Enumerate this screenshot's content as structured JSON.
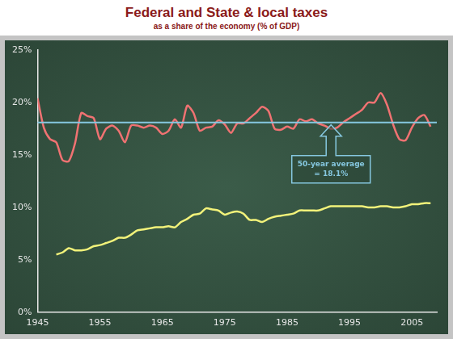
{
  "chart_data": {
    "type": "line",
    "title": "Federal and State & local taxes",
    "subtitle": "as a share of the economy (% of GDP)",
    "x": [
      1945,
      1946,
      1947,
      1948,
      1949,
      1950,
      1951,
      1952,
      1953,
      1954,
      1955,
      1956,
      1957,
      1958,
      1959,
      1960,
      1961,
      1962,
      1963,
      1964,
      1965,
      1966,
      1967,
      1968,
      1969,
      1970,
      1971,
      1972,
      1973,
      1974,
      1975,
      1976,
      1977,
      1978,
      1979,
      1980,
      1981,
      1982,
      1983,
      1984,
      1985,
      1986,
      1987,
      1988,
      1989,
      1990,
      1991,
      1992,
      1993,
      1994,
      1995,
      1996,
      1997,
      1998,
      1999,
      2000,
      2001,
      2002,
      2003,
      2004,
      2005,
      2006,
      2007,
      2008
    ],
    "series": [
      {
        "color": "#f07272",
        "line_style": "solid",
        "marker": "none",
        "values": [
          20.4,
          17.6,
          16.5,
          16.2,
          14.5,
          14.4,
          16.1,
          19.0,
          18.7,
          18.5,
          16.5,
          17.5,
          17.8,
          17.3,
          16.2,
          17.8,
          17.8,
          17.6,
          17.8,
          17.6,
          17.0,
          17.3,
          18.4,
          17.6,
          19.7,
          19.0,
          17.3,
          17.6,
          17.7,
          18.3,
          17.9,
          17.1,
          18.0,
          18.0,
          18.5,
          19.0,
          19.6,
          19.2,
          17.5,
          17.4,
          17.7,
          17.5,
          18.4,
          18.2,
          18.4,
          18.0,
          17.8,
          17.5,
          17.6,
          18.1,
          18.5,
          18.9,
          19.3,
          20.0,
          20.0,
          20.9,
          19.8,
          17.9,
          16.5,
          16.4,
          17.6,
          18.5,
          18.8,
          17.7
        ]
      },
      {
        "color": "#f2f27a",
        "line_style": "solid",
        "marker": "none",
        "values": [
          null,
          null,
          null,
          5.5,
          5.7,
          6.1,
          5.9,
          5.9,
          6.0,
          6.3,
          6.4,
          6.6,
          6.8,
          7.1,
          7.1,
          7.4,
          7.8,
          7.9,
          8.0,
          8.1,
          8.1,
          8.2,
          8.1,
          8.6,
          8.9,
          9.3,
          9.4,
          9.9,
          9.8,
          9.7,
          9.3,
          9.5,
          9.6,
          9.4,
          8.8,
          8.8,
          8.6,
          8.9,
          9.1,
          9.2,
          9.3,
          9.4,
          9.7,
          9.7,
          9.7,
          9.7,
          9.9,
          10.1,
          10.1,
          10.1,
          10.1,
          10.1,
          10.1,
          10.0,
          10.0,
          10.1,
          10.1,
          10.0,
          10.0,
          10.1,
          10.3,
          10.3,
          10.4,
          10.4
        ]
      }
    ],
    "reference_line": {
      "value": 18.1,
      "color": "#86c8e0",
      "label": [
        "50-year average",
        "= 18.1%"
      ]
    },
    "xlim": [
      1945,
      2009
    ],
    "xticks": [
      1945,
      1955,
      1965,
      1975,
      1985,
      1995,
      2005
    ],
    "ylim": [
      0,
      25
    ],
    "yticks": [
      {
        "value": 0,
        "label": "0%"
      },
      {
        "value": 5,
        "label": "5%"
      },
      {
        "value": 10,
        "label": "10%"
      },
      {
        "value": 15,
        "label": "15%"
      },
      {
        "value": 20,
        "label": "20%"
      },
      {
        "value": 25,
        "label": "25%"
      }
    ],
    "grid": false
  }
}
